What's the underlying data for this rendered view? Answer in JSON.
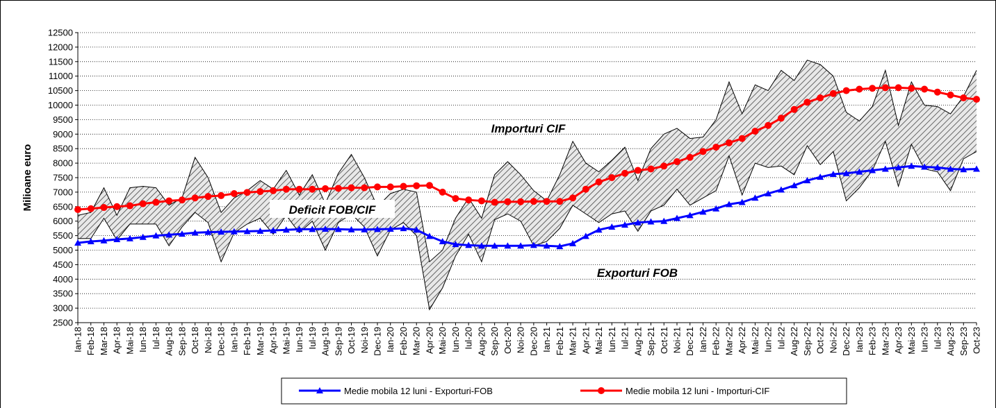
{
  "chart_data": {
    "type": "line",
    "y_label": "Milioane  euro",
    "categories": [
      "Ian-18",
      "Feb-18",
      "Mar-18",
      "Apr-18",
      "Mai-18",
      "Iun-18",
      "Iul-18",
      "Aug-18",
      "Sep-18",
      "Oct-18",
      "Noi-18",
      "Dec-18",
      "Ian-19",
      "Feb-19",
      "Mar-19",
      "Apr-19",
      "Mai-19",
      "Iun-19",
      "Iul-19",
      "Aug-19",
      "Sep-19",
      "Oct-19",
      "Noi-19",
      "Dec-19",
      "Ian-20",
      "Feb-20",
      "Mar-20",
      "Apr-20",
      "Mai-20",
      "Iun-20",
      "Iul-20",
      "Aug-20",
      "Sep-20",
      "Oct-20",
      "Noi-20",
      "Dec-20",
      "Ian-21",
      "Feb-21",
      "Mar-21",
      "Apr-21",
      "Mai-21",
      "Iun-21",
      "Iul-21",
      "Aug-21",
      "Sep-21",
      "Oct-21",
      "Noi-21",
      "Dec-21",
      "Ian-22",
      "Feb-22",
      "Mar-22",
      "Apr-22",
      "Mai-22",
      "Iun-22",
      "Iul-22",
      "Aug-22",
      "Sep-22",
      "Oct-22",
      "Noi-22",
      "Dec-22",
      "Ian-23",
      "Feb-23",
      "Mar-23",
      "Apr-23",
      "Mai-23",
      "Iun-23",
      "Iul-23",
      "Aug-23",
      "Sep-23",
      "Oct-23"
    ],
    "series": [
      {
        "name": "Exporturi FOB",
        "color": "#000000",
        "marker": null,
        "values": [
          5400,
          5400,
          6100,
          5350,
          5900,
          5900,
          5900,
          5150,
          5800,
          6300,
          5950,
          4600,
          5600,
          5900,
          6100,
          5550,
          6200,
          5600,
          6000,
          5000,
          5950,
          6250,
          5800,
          4800,
          5700,
          5950,
          5500,
          2950,
          3700,
          4800,
          5550,
          4600,
          6050,
          6250,
          6000,
          5150,
          5300,
          5750,
          6550,
          6250,
          5950,
          6250,
          6350,
          5650,
          6350,
          6550,
          7100,
          6550,
          6800,
          7050,
          8250,
          6900,
          8000,
          7850,
          7900,
          7600,
          8600,
          7950,
          8400,
          6700,
          7150,
          7750,
          8750,
          7200,
          8650,
          7800,
          7700,
          7050,
          8150,
          8400
        ]
      },
      {
        "name": "Importuri CIF",
        "color": "#000000",
        "marker": null,
        "values": [
          6200,
          6300,
          7150,
          6200,
          7150,
          7200,
          7150,
          6550,
          6800,
          8200,
          7500,
          6300,
          6800,
          7050,
          7400,
          7100,
          7750,
          6900,
          7600,
          6600,
          7650,
          8300,
          7500,
          6500,
          6950,
          7100,
          7000,
          4600,
          5000,
          6100,
          6800,
          6100,
          7600,
          8050,
          7600,
          7050,
          6700,
          7600,
          8750,
          8000,
          7700,
          8100,
          8550,
          7400,
          8500,
          9000,
          9200,
          8850,
          8900,
          9500,
          10800,
          9700,
          10700,
          10500,
          11200,
          10850,
          11550,
          11400,
          11000,
          9750,
          9450,
          9950,
          11200,
          9300,
          10800,
          10000,
          9950,
          9700,
          10300,
          11200
        ]
      },
      {
        "name": "Medie mobila 12 luni - Exporturi-FOB",
        "color": "#0000ff",
        "marker": "triangle",
        "values": [
          5250,
          5300,
          5330,
          5370,
          5400,
          5450,
          5500,
          5530,
          5560,
          5600,
          5620,
          5630,
          5640,
          5650,
          5660,
          5680,
          5700,
          5720,
          5720,
          5730,
          5720,
          5710,
          5710,
          5720,
          5730,
          5750,
          5700,
          5480,
          5300,
          5200,
          5170,
          5150,
          5150,
          5150,
          5150,
          5170,
          5150,
          5130,
          5230,
          5480,
          5700,
          5800,
          5870,
          5950,
          5980,
          6000,
          6100,
          6200,
          6320,
          6430,
          6580,
          6650,
          6800,
          6950,
          7080,
          7230,
          7400,
          7520,
          7620,
          7650,
          7700,
          7750,
          7800,
          7850,
          7900,
          7870,
          7850,
          7800,
          7780,
          7800
        ]
      },
      {
        "name": "Medie mobila 12 luni - Importuri-CIF",
        "color": "#ff0000",
        "marker": "circle",
        "values": [
          6400,
          6430,
          6470,
          6500,
          6530,
          6600,
          6650,
          6700,
          6730,
          6800,
          6850,
          6880,
          6950,
          6990,
          7020,
          7050,
          7100,
          7100,
          7100,
          7120,
          7130,
          7150,
          7150,
          7180,
          7180,
          7200,
          7220,
          7230,
          7000,
          6780,
          6730,
          6700,
          6650,
          6670,
          6670,
          6680,
          6680,
          6680,
          6800,
          7100,
          7350,
          7500,
          7650,
          7750,
          7800,
          7900,
          8050,
          8200,
          8400,
          8550,
          8700,
          8850,
          9100,
          9300,
          9550,
          9850,
          10100,
          10250,
          10400,
          10500,
          10550,
          10580,
          10600,
          10600,
          10580,
          10550,
          10450,
          10350,
          10250,
          10200
        ]
      }
    ],
    "annotations": [
      "Deficit FOB/CIF"
    ],
    "ylim": [
      2500,
      12500
    ],
    "yticks": [
      2500,
      3000,
      3500,
      4000,
      4500,
      5000,
      5500,
      6000,
      6500,
      7000,
      7500,
      8000,
      8500,
      9000,
      9500,
      10000,
      10500,
      11000,
      11500,
      12000,
      12500
    ],
    "grid": true
  }
}
